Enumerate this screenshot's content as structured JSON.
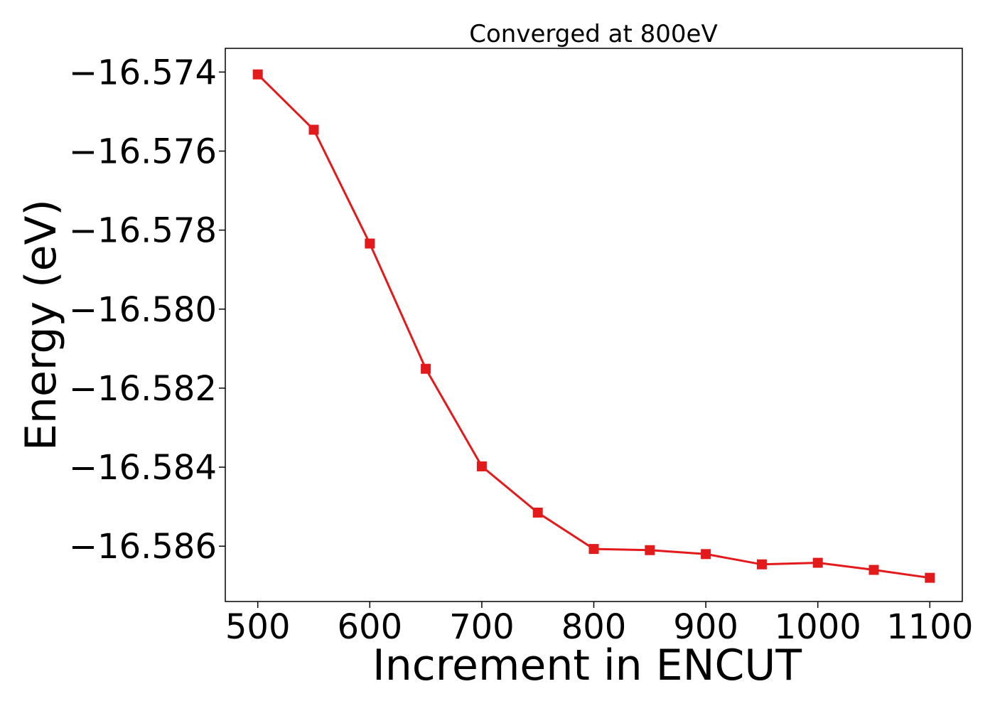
{
  "chart_data": {
    "type": "line",
    "title": "Converged at 800eV",
    "xlabel": "Increment in ENCUT",
    "ylabel": "Energy (eV)",
    "xlim": [
      471,
      1129
    ],
    "ylim": [
      -16.5874,
      -16.5734
    ],
    "xticks": [
      500,
      600,
      700,
      800,
      900,
      1000,
      1100
    ],
    "xtick_labels": [
      "500",
      "600",
      "700",
      "800",
      "900",
      "1000",
      "1100"
    ],
    "yticks": [
      -16.574,
      -16.576,
      -16.578,
      -16.58,
      -16.582,
      -16.584,
      -16.586
    ],
    "ytick_labels": [
      "−16.574",
      "−16.576",
      "−16.578",
      "−16.580",
      "−16.582",
      "−16.584",
      "−16.586"
    ],
    "grid": false,
    "series": [
      {
        "color": "#e31a1c",
        "marker": "square",
        "x": [
          500,
          550,
          600,
          650,
          700,
          750,
          800,
          850,
          900,
          950,
          1000,
          1050,
          1100
        ],
        "y": [
          -16.57406,
          -16.57546,
          -16.57834,
          -16.58151,
          -16.58398,
          -16.58515,
          -16.58607,
          -16.5861,
          -16.5862,
          -16.58646,
          -16.58642,
          -16.5866,
          -16.5868
        ]
      }
    ]
  }
}
